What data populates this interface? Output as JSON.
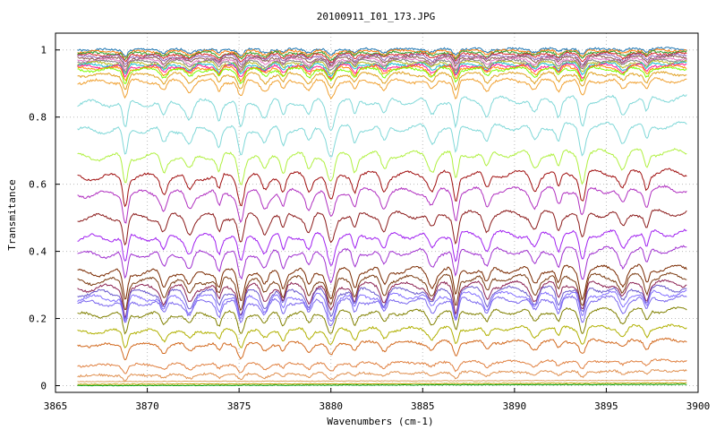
{
  "chart_data": {
    "type": "line",
    "title": "20100911_I01_173.JPG",
    "xlabel": "Wavenumbers (cm-1)",
    "ylabel": "Transmitance",
    "xlim": [
      3865,
      3900
    ],
    "ylim": [
      -0.02,
      1.05
    ],
    "x_ticks": [
      3865,
      3870,
      3875,
      3880,
      3885,
      3890,
      3895,
      3900
    ],
    "y_ticks": [
      0,
      0.2,
      0.4,
      0.6,
      0.8,
      1
    ],
    "x_tick_labels": [
      "3865",
      "3870",
      "3875",
      "3880",
      "3885",
      "3890",
      "3895",
      "3900"
    ],
    "y_tick_labels": [
      "0",
      "0.2",
      "0.4",
      "0.6",
      "0.8",
      "1"
    ],
    "x_range": [
      3866.2,
      3899.4
    ],
    "grid": true,
    "legend": "none",
    "absorption_lines_cm1": [
      3868.8,
      3870.9,
      3872.3,
      3873.9,
      3875.1,
      3876.4,
      3877.4,
      3878.8,
      3880.0,
      3881.3,
      3882.9,
      3885.5,
      3886.8,
      3888.5,
      3891.1,
      3892.4,
      3893.7,
      3895.9,
      3897.2
    ],
    "series": [
      {
        "baseline": 1.0,
        "color": "#1f77b4"
      },
      {
        "baseline": 0.995,
        "color": "#ff7f0e"
      },
      {
        "baseline": 0.99,
        "color": "#2ca02c"
      },
      {
        "baseline": 0.985,
        "color": "#d62728"
      },
      {
        "baseline": 0.98,
        "color": "#9467bd"
      },
      {
        "baseline": 0.975,
        "color": "#8c564b"
      },
      {
        "baseline": 0.97,
        "color": "#e377c2"
      },
      {
        "baseline": 0.965,
        "color": "#7f7f7f"
      },
      {
        "baseline": 0.96,
        "color": "#bcbd22"
      },
      {
        "baseline": 0.955,
        "color": "#17becf"
      },
      {
        "baseline": 0.95,
        "color": "#ff1493"
      },
      {
        "baseline": 0.945,
        "color": "#ff8c00"
      },
      {
        "baseline": 0.94,
        "color": "#7cfc00"
      },
      {
        "baseline": 0.925,
        "color": "#e0a020"
      },
      {
        "baseline": 0.905,
        "color": "#f0a030"
      },
      {
        "baseline": 0.84,
        "color": "#80d8d8"
      },
      {
        "baseline": 0.76,
        "color": "#80d8d8"
      },
      {
        "baseline": 0.68,
        "color": "#b0f040"
      },
      {
        "baseline": 0.62,
        "color": "#a01010"
      },
      {
        "baseline": 0.57,
        "color": "#b030c0"
      },
      {
        "baseline": 0.5,
        "color": "#8b1a1a"
      },
      {
        "baseline": 0.44,
        "color": "#a020f0"
      },
      {
        "baseline": 0.39,
        "color": "#a030d0"
      },
      {
        "baseline": 0.335,
        "color": "#7a2a00"
      },
      {
        "baseline": 0.31,
        "color": "#7a3a10"
      },
      {
        "baseline": 0.29,
        "color": "#8b2252"
      },
      {
        "baseline": 0.275,
        "color": "#6a5acd"
      },
      {
        "baseline": 0.26,
        "color": "#8470ff"
      },
      {
        "baseline": 0.245,
        "color": "#7b68ee"
      },
      {
        "baseline": 0.21,
        "color": "#808000"
      },
      {
        "baseline": 0.16,
        "color": "#b0b000"
      },
      {
        "baseline": 0.12,
        "color": "#d2691e"
      },
      {
        "baseline": 0.06,
        "color": "#e08040"
      },
      {
        "baseline": 0.03,
        "color": "#e09050"
      },
      {
        "baseline": 0.012,
        "color": "#e0a060"
      },
      {
        "baseline": 0.004,
        "color": "#c0a000"
      },
      {
        "baseline": 0.0,
        "color": "#00a000"
      }
    ]
  }
}
